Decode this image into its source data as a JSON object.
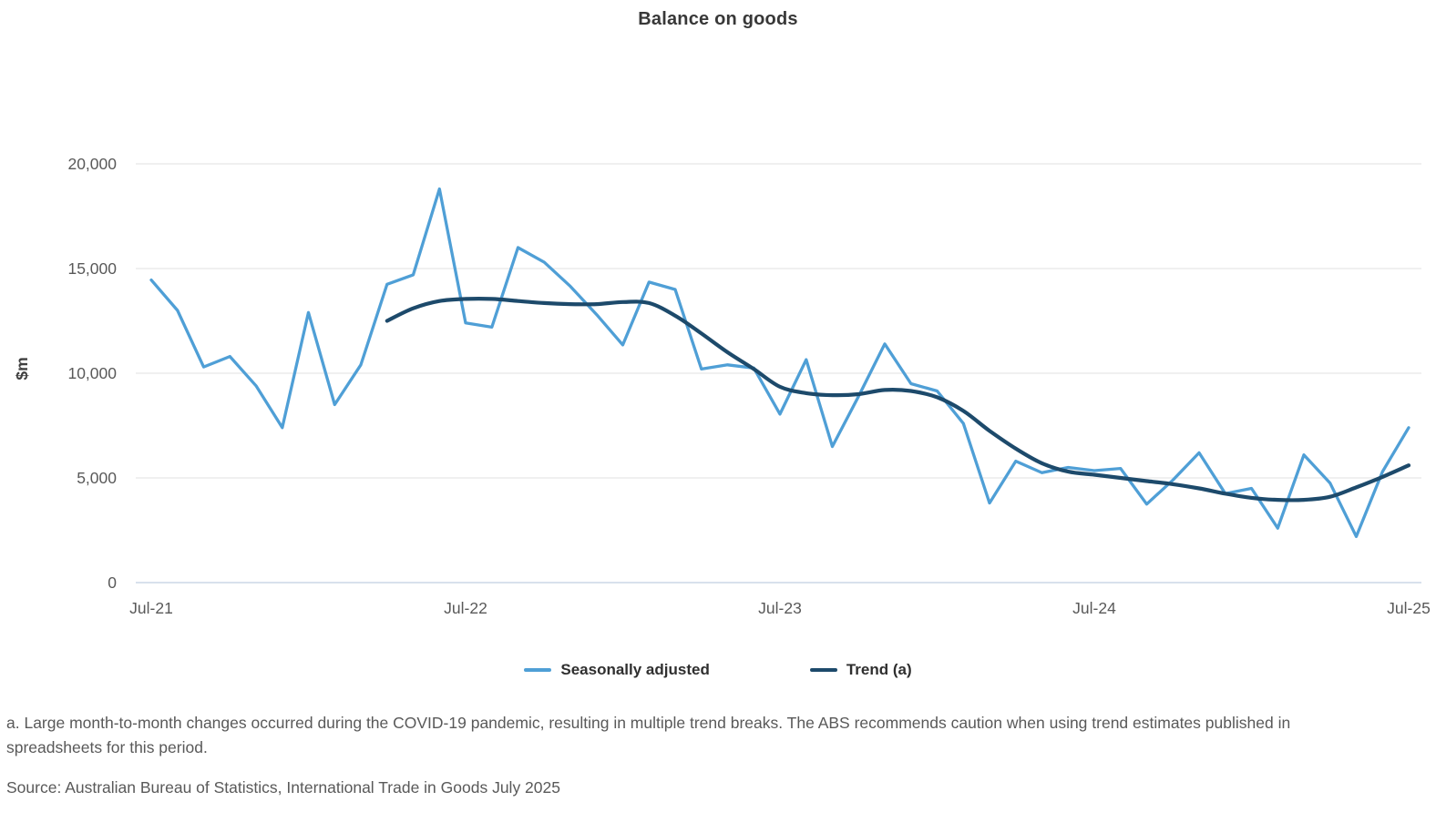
{
  "title": "Balance on goods",
  "y_axis": {
    "label": "$m",
    "ticks": [
      {
        "label": "0",
        "value": 0
      },
      {
        "label": "5,000",
        "value": 5000
      },
      {
        "label": "10,000",
        "value": 10000
      },
      {
        "label": "15,000",
        "value": 15000
      },
      {
        "label": "20,000",
        "value": 20000
      }
    ]
  },
  "x_axis": {
    "ticks": [
      {
        "label": "Jul-21",
        "index": 0
      },
      {
        "label": "Jul-22",
        "index": 12
      },
      {
        "label": "Jul-23",
        "index": 24
      },
      {
        "label": "Jul-24",
        "index": 36
      },
      {
        "label": "Jul-25",
        "index": 48
      }
    ]
  },
  "legend": [
    {
      "label": "Seasonally adjusted",
      "color": "#4f9fd6"
    },
    {
      "label": "Trend (a)",
      "color": "#1d4a6b"
    }
  ],
  "footnote": "a. Large month-to-month changes occurred during the COVID-19 pandemic, resulting in multiple trend breaks. The ABS recommends caution when using trend estimates published in spreadsheets for this period.",
  "source": "Source: Australian Bureau of Statistics, International Trade in Goods July 2025",
  "colors": {
    "seasonally_adjusted": "#4f9fd6",
    "trend": "#1d4a6b",
    "gridline": "#e7e7e7",
    "baseline": "#ccd7e5",
    "tick_text": "#595959",
    "axis_title_text": "#3f3f3f"
  },
  "chart_data": {
    "type": "line",
    "title": "Balance on goods",
    "ylabel": "$m",
    "xlabel": "",
    "ylim": [
      0,
      20000
    ],
    "grid": "horizontal",
    "legend_position": "bottom",
    "frequency": "monthly",
    "categories": [
      "Jul-21",
      "Aug-21",
      "Sep-21",
      "Oct-21",
      "Nov-21",
      "Dec-21",
      "Jan-22",
      "Feb-22",
      "Mar-22",
      "Apr-22",
      "May-22",
      "Jun-22",
      "Jul-22",
      "Aug-22",
      "Sep-22",
      "Oct-22",
      "Nov-22",
      "Dec-22",
      "Jan-23",
      "Feb-23",
      "Mar-23",
      "Apr-23",
      "May-23",
      "Jun-23",
      "Jul-23",
      "Aug-23",
      "Sep-23",
      "Oct-23",
      "Nov-23",
      "Dec-23",
      "Jan-24",
      "Feb-24",
      "Mar-24",
      "Apr-24",
      "May-24",
      "Jun-24",
      "Jul-24",
      "Aug-24",
      "Sep-24",
      "Oct-24",
      "Nov-24",
      "Dec-24",
      "Jan-25",
      "Feb-25",
      "Mar-25",
      "Apr-25",
      "May-25",
      "Jun-25",
      "Jul-25"
    ],
    "series": [
      {
        "name": "Seasonally adjusted",
        "color": "#4f9fd6",
        "values": [
          14450,
          13000,
          10300,
          10800,
          9400,
          7400,
          12900,
          8500,
          10400,
          14250,
          14700,
          18800,
          12400,
          12200,
          16000,
          15300,
          14150,
          12800,
          11350,
          14350,
          14000,
          10200,
          10400,
          10250,
          8050,
          10650,
          6500,
          8900,
          11400,
          9500,
          9150,
          7600,
          3800,
          5800,
          5250,
          5500,
          5350,
          5450,
          3750,
          4900,
          6200,
          4250,
          4500,
          2600,
          6100,
          4750,
          2200,
          5300,
          7400
        ]
      },
      {
        "name": "Trend (a)",
        "color": "#1d4a6b",
        "values": [
          null,
          null,
          null,
          null,
          null,
          null,
          null,
          null,
          null,
          12500,
          13100,
          13450,
          13550,
          13550,
          13450,
          13350,
          13300,
          13300,
          13400,
          13350,
          12750,
          11900,
          11000,
          10200,
          9350,
          9050,
          8950,
          9000,
          9200,
          9150,
          8850,
          8200,
          7250,
          6400,
          5700,
          5300,
          5150,
          5000,
          4850,
          4700,
          4500,
          4250,
          4050,
          3950,
          3950,
          4100,
          4550,
          5050,
          5600
        ]
      }
    ]
  }
}
